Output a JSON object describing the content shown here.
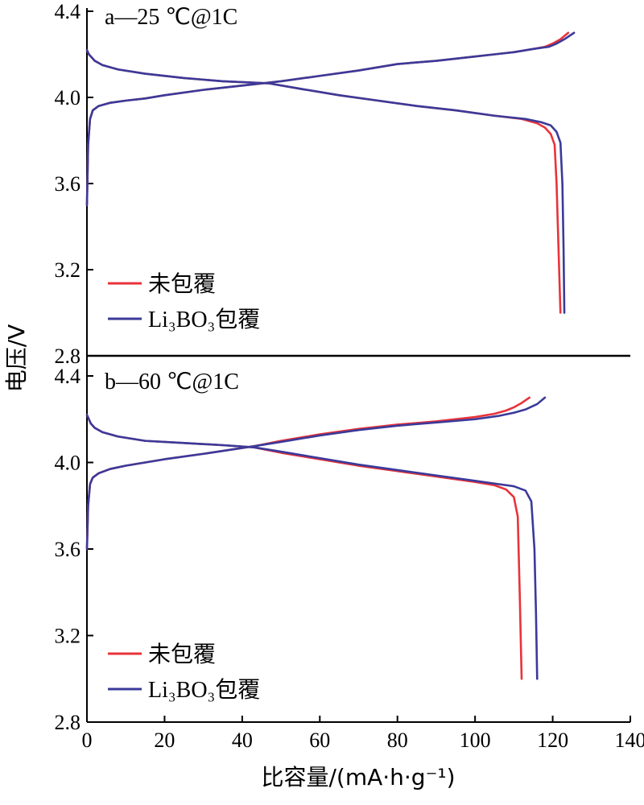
{
  "chart_data": {
    "type": "line",
    "xlabel": "比容量/(mA·h·g⁻¹)",
    "ylabel": "电压/V",
    "xlim": [
      0,
      140
    ],
    "xticks": [
      "0",
      "20",
      "40",
      "60",
      "80",
      "100",
      "120",
      "140"
    ],
    "colors": {
      "uncoated": "#e8333a",
      "coated": "#3a3a9a"
    },
    "panels": [
      {
        "title": "a—25 ℃@1C",
        "ylim": [
          2.8,
          4.4
        ],
        "yticks": [
          "2.8",
          "3.2",
          "3.6",
          "4.0",
          "4.4"
        ],
        "legend": [
          "未包覆",
          "Li₃BO₃包覆"
        ],
        "series": [
          {
            "name": "未包覆",
            "color_key": "uncoated",
            "kind": "charge",
            "x": [
              0,
              0.3,
              0.8,
              1.5,
              3,
              6,
              10,
              15,
              20,
              30,
              40,
              50,
              60,
              70,
              80,
              90,
              100,
              105,
              110,
              115,
              118,
              120,
              122,
              124
            ],
            "y": [
              3.5,
              3.78,
              3.9,
              3.94,
              3.96,
              3.975,
              3.985,
              3.995,
              4.01,
              4.035,
              4.055,
              4.075,
              4.1,
              4.125,
              4.155,
              4.17,
              4.19,
              4.2,
              4.21,
              4.225,
              4.235,
              4.25,
              4.27,
              4.3
            ]
          },
          {
            "name": "Li₃BO₃包覆",
            "color_key": "coated",
            "kind": "charge",
            "x": [
              0,
              0.3,
              0.8,
              1.5,
              3,
              6,
              10,
              15,
              20,
              30,
              40,
              50,
              60,
              70,
              80,
              90,
              100,
              105,
              110,
              115,
              119,
              121,
              123,
              125.5
            ],
            "y": [
              3.5,
              3.78,
              3.9,
              3.94,
              3.96,
              3.975,
              3.985,
              3.995,
              4.01,
              4.035,
              4.055,
              4.075,
              4.1,
              4.125,
              4.155,
              4.17,
              4.19,
              4.2,
              4.21,
              4.225,
              4.235,
              4.25,
              4.27,
              4.3
            ]
          },
          {
            "name": "未包覆",
            "color_key": "uncoated",
            "kind": "discharge",
            "x": [
              0,
              0.5,
              1,
              2,
              4,
              8,
              15,
              25,
              35,
              47,
              55,
              65,
              75,
              85,
              95,
              105,
              112,
              116,
              118,
              119.5,
              120.5,
              121,
              121.5,
              122
            ],
            "y": [
              4.22,
              4.2,
              4.19,
              4.17,
              4.15,
              4.13,
              4.11,
              4.09,
              4.075,
              4.065,
              4.04,
              4.01,
              3.985,
              3.96,
              3.94,
              3.915,
              3.9,
              3.88,
              3.86,
              3.83,
              3.78,
              3.6,
              3.3,
              3.0
            ]
          },
          {
            "name": "Li₃BO₃包覆",
            "color_key": "coated",
            "kind": "discharge",
            "x": [
              0,
              0.5,
              1,
              2,
              4,
              8,
              15,
              25,
              35,
              47,
              55,
              65,
              75,
              85,
              95,
              105,
              113,
              117,
              119.5,
              121,
              122,
              122.5,
              122.8,
              123
            ],
            "y": [
              4.22,
              4.2,
              4.19,
              4.17,
              4.15,
              4.13,
              4.11,
              4.09,
              4.075,
              4.065,
              4.04,
              4.01,
              3.985,
              3.96,
              3.94,
              3.915,
              3.9,
              3.885,
              3.87,
              3.84,
              3.79,
              3.6,
              3.3,
              3.0
            ]
          }
        ]
      },
      {
        "title": "b—60 ℃@1C",
        "ylim": [
          2.8,
          4.4
        ],
        "yticks": [
          "2.8",
          "3.2",
          "3.6",
          "4.0",
          "4.4"
        ],
        "legend": [
          "未包覆",
          "Li₃BO₃包覆"
        ],
        "series": [
          {
            "name": "未包覆",
            "color_key": "uncoated",
            "kind": "charge",
            "x": [
              0,
              0.3,
              0.8,
              1.5,
              3,
              6,
              10,
              15,
              20,
              30,
              43,
              50,
              60,
              70,
              80,
              90,
              100,
              105,
              108,
              110,
              112,
              114
            ],
            "y": [
              3.6,
              3.8,
              3.9,
              3.93,
              3.95,
              3.97,
              3.985,
              4.0,
              4.015,
              4.04,
              4.075,
              4.1,
              4.13,
              4.155,
              4.175,
              4.19,
              4.21,
              4.225,
              4.24,
              4.255,
              4.275,
              4.3
            ]
          },
          {
            "name": "Li₃BO₃包覆",
            "color_key": "coated",
            "kind": "charge",
            "x": [
              0,
              0.3,
              0.8,
              1.5,
              3,
              6,
              10,
              15,
              20,
              30,
              43,
              50,
              60,
              70,
              80,
              90,
              100,
              106,
              110,
              113,
              116,
              118
            ],
            "y": [
              3.6,
              3.8,
              3.9,
              3.93,
              3.95,
              3.97,
              3.985,
              4.0,
              4.015,
              4.04,
              4.075,
              4.095,
              4.125,
              4.15,
              4.17,
              4.185,
              4.2,
              4.215,
              4.23,
              4.245,
              4.27,
              4.3
            ]
          },
          {
            "name": "未包覆",
            "color_key": "uncoated",
            "kind": "discharge",
            "x": [
              0,
              0.5,
              1,
              2,
              4,
              8,
              15,
              25,
              35,
              43,
              50,
              60,
              70,
              80,
              90,
              100,
              105,
              108,
              110,
              111,
              111.5,
              112
            ],
            "y": [
              4.22,
              4.2,
              4.18,
              4.16,
              4.14,
              4.12,
              4.1,
              4.09,
              4.08,
              4.07,
              4.045,
              4.015,
              3.985,
              3.96,
              3.935,
              3.91,
              3.895,
              3.875,
              3.84,
              3.75,
              3.4,
              3.0
            ]
          },
          {
            "name": "Li₃BO₃包覆",
            "color_key": "coated",
            "kind": "discharge",
            "x": [
              0,
              0.5,
              1,
              2,
              4,
              8,
              15,
              25,
              35,
              43,
              50,
              60,
              70,
              80,
              90,
              100,
              106,
              110,
              113,
              114.5,
              115.3,
              115.7,
              116
            ],
            "y": [
              4.22,
              4.2,
              4.18,
              4.16,
              4.14,
              4.12,
              4.1,
              4.09,
              4.08,
              4.07,
              4.05,
              4.02,
              3.99,
              3.965,
              3.94,
              3.915,
              3.9,
              3.89,
              3.87,
              3.82,
              3.6,
              3.3,
              3.0
            ]
          }
        ]
      }
    ]
  }
}
